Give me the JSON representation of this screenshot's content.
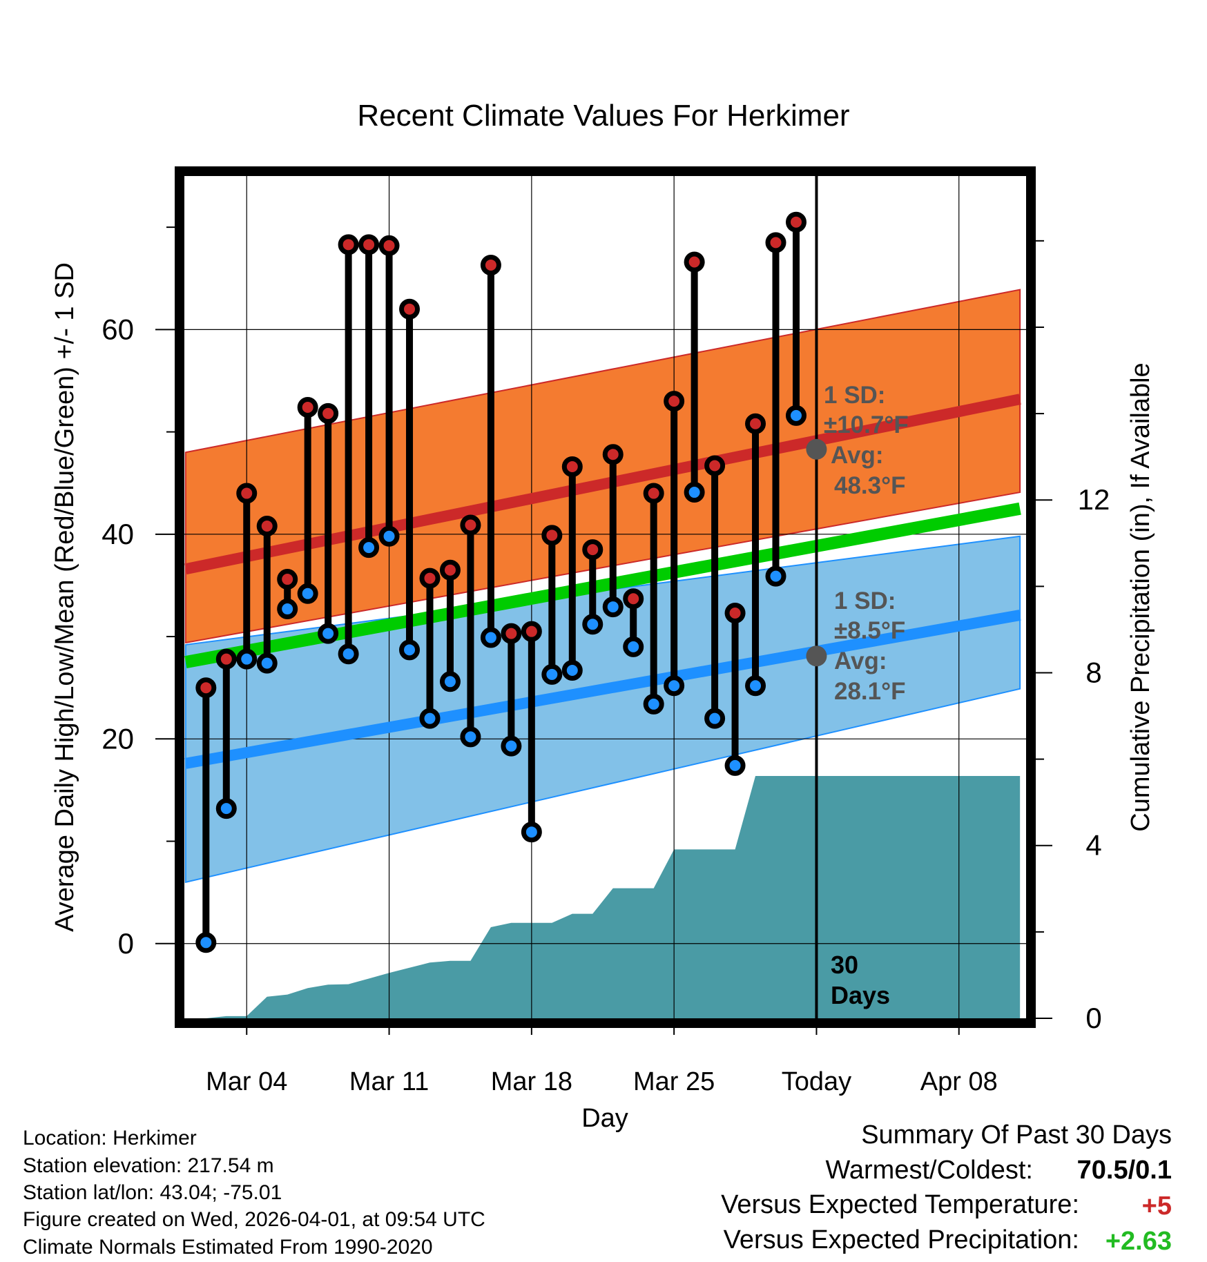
{
  "chart_data": {
    "type": "line",
    "title": "Recent Climate Values For Herkimer",
    "xlabel": "Day",
    "ylabel": "Average Daily High/Low/Mean (Red/Blue/Green) +/- 1 SD",
    "ylabel_right": "Cumulative Precipitation (in), If Available",
    "ylim": [
      -7.3,
      75
    ],
    "ylim_right": [
      0,
      19.5
    ],
    "xlim": [
      -0.3,
      41.3
    ],
    "x_ticks": [
      {
        "x": 3,
        "label": "Mar 04"
      },
      {
        "x": 10,
        "label": "Mar 11"
      },
      {
        "x": 17,
        "label": "Mar 18"
      },
      {
        "x": 24,
        "label": "Mar 25"
      },
      {
        "x": 31,
        "label": "Today"
      },
      {
        "x": 38,
        "label": "Apr 08"
      }
    ],
    "y_ticks": [
      0,
      20,
      40,
      60
    ],
    "y_ticks_right": [
      0,
      4,
      8,
      12
    ],
    "today_x": 31,
    "today_label_line1": "30",
    "today_label_line2": "Days",
    "daily": {
      "x": [
        1,
        2,
        3,
        4,
        5,
        6,
        7,
        8,
        9,
        10,
        11,
        12,
        13,
        14,
        15,
        16,
        17,
        18,
        19,
        20,
        21,
        22,
        23,
        24,
        25,
        26,
        27,
        28,
        29,
        30
      ],
      "highs": [
        25,
        27.8,
        44,
        40.8,
        35.6,
        52.4,
        51.8,
        68.3,
        68.3,
        68.2,
        62,
        35.7,
        36.5,
        40.9,
        66.3,
        30.3,
        30.5,
        39.9,
        46.6,
        38.5,
        47.8,
        33.7,
        44,
        53,
        66.6,
        46.7,
        32.3,
        50.8,
        68.5,
        70.5
      ],
      "lows": [
        0.1,
        13.2,
        27.8,
        27.4,
        32.7,
        34.2,
        30.3,
        28.3,
        38.7,
        39.8,
        28.7,
        22,
        25.6,
        20.2,
        29.9,
        19.3,
        10.9,
        26.3,
        26.7,
        31.2,
        32.9,
        29,
        23.4,
        25.2,
        44.1,
        22,
        17.4,
        25.2,
        35.9,
        51.6
      ]
    },
    "normals": {
      "x": [
        0,
        41
      ],
      "mean_high": [
        36.6,
        53.2
      ],
      "mean_low": [
        17.6,
        32.1
      ],
      "mean": [
        27.5,
        42.5
      ],
      "high_sd_upper": [
        48,
        63.9
      ],
      "high_sd_lower": [
        29.4,
        44.1
      ],
      "low_sd_upper": [
        29.2,
        39.8
      ],
      "low_sd_lower": [
        6,
        24.9
      ]
    },
    "precip": {
      "x": [
        1,
        2,
        3,
        4,
        5,
        6,
        7,
        8,
        9,
        10,
        11,
        12,
        13,
        14,
        15,
        16,
        17,
        18,
        19,
        20,
        21,
        22,
        23,
        24,
        25,
        26,
        27,
        28,
        29,
        30,
        31,
        41
      ],
      "cum": [
        0,
        0.05,
        0.05,
        0.5,
        0.55,
        0.7,
        0.78,
        0.79,
        0.92,
        1.05,
        1.17,
        1.29,
        1.33,
        1.33,
        2.11,
        2.21,
        2.21,
        2.21,
        2.42,
        2.42,
        3.01,
        3.01,
        3.01,
        3.91,
        3.91,
        3.91,
        3.91,
        5.61,
        5.61,
        5.61,
        5.61,
        5.61
      ]
    },
    "annotations": {
      "high_sd_title": "1 SD:",
      "high_sd_value": "±10.7°F",
      "high_avg_title": "Avg:",
      "high_avg_value": "48.3°F",
      "high_avg_marker_y": 48.3,
      "low_sd_title": "1 SD:",
      "low_sd_value": "±8.5°F",
      "low_avg_title": "Avg:",
      "low_avg_value": "28.1°F",
      "low_avg_marker_y": 28.1
    },
    "colors": {
      "high": "#cc2929",
      "low": "#1e90ff",
      "mean": "#00cc00",
      "high_band": "#f47b30",
      "low_band": "#82c1e8",
      "precip": "#4a9ba5",
      "annotation": "#555555"
    }
  },
  "station_info": [
    "Location: Herkimer",
    "Station elevation: 217.54 m",
    "Station lat/lon: 43.04; -75.01",
    "Figure created on Wed, 2026-04-01, at 09:54 UTC",
    "Climate Normals Estimated From 1990-2020"
  ],
  "summary": {
    "title": "Summary Of Past 30 Days",
    "warmest_coldest_label": "Warmest/Coldest:",
    "warmest_coldest_value": "70.5/0.1",
    "temp_label": "Versus Expected Temperature:",
    "temp_value": "+5",
    "temp_color": "#cc2929",
    "precip_label": "Versus Expected Precipitation:",
    "precip_value": "+2.63",
    "precip_color": "#22bb22"
  }
}
